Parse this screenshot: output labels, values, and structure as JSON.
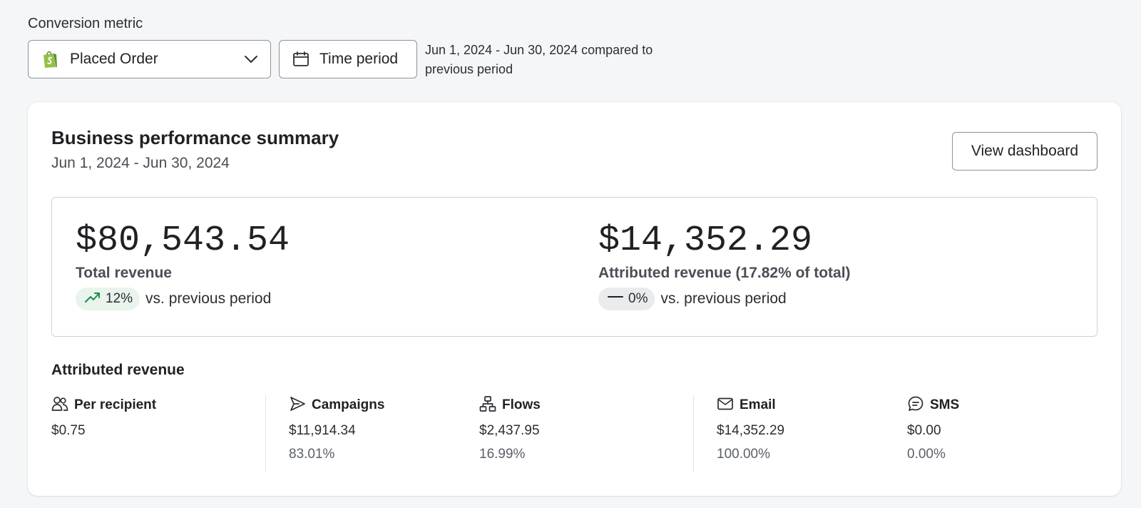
{
  "filters": {
    "metric_label": "Conversion metric",
    "metric_value": "Placed Order",
    "metric_icon": "shopify-bag-icon",
    "time_button_label": "Time period",
    "date_range_text": "Jun 1, 2024 - Jun 30, 2024 compared to previous period"
  },
  "summary": {
    "title": "Business performance summary",
    "subtitle": "Jun 1, 2024 - Jun 30, 2024",
    "view_button_label": "View dashboard",
    "total": {
      "value": "$80,543.54",
      "label": "Total revenue",
      "change": "12%",
      "change_direction": "up",
      "vs_text": "vs. previous period"
    },
    "attributed": {
      "value": "$14,352.29",
      "label": "Attributed revenue (17.82% of total)",
      "change": "0%",
      "change_direction": "flat",
      "vs_text": "vs. previous period"
    }
  },
  "attributed_section": {
    "title": "Attributed revenue",
    "stats": [
      {
        "name": "Per recipient",
        "icon": "users-icon",
        "value": "$0.75",
        "percent": ""
      },
      {
        "name": "Campaigns",
        "icon": "send-icon",
        "value": "$11,914.34",
        "percent": "83.01%"
      },
      {
        "name": "Flows",
        "icon": "flow-tree-icon",
        "value": "$2,437.95",
        "percent": "16.99%"
      },
      {
        "name": "Email",
        "icon": "envelope-icon",
        "value": "$14,352.29",
        "percent": "100.00%"
      },
      {
        "name": "SMS",
        "icon": "chat-bubble-icon",
        "value": "$0.00",
        "percent": "0.00%"
      }
    ]
  },
  "colors": {
    "positive": "#1f8a4c",
    "shopify_green": "#95bf47",
    "page_bg": "#f5f6f7"
  }
}
